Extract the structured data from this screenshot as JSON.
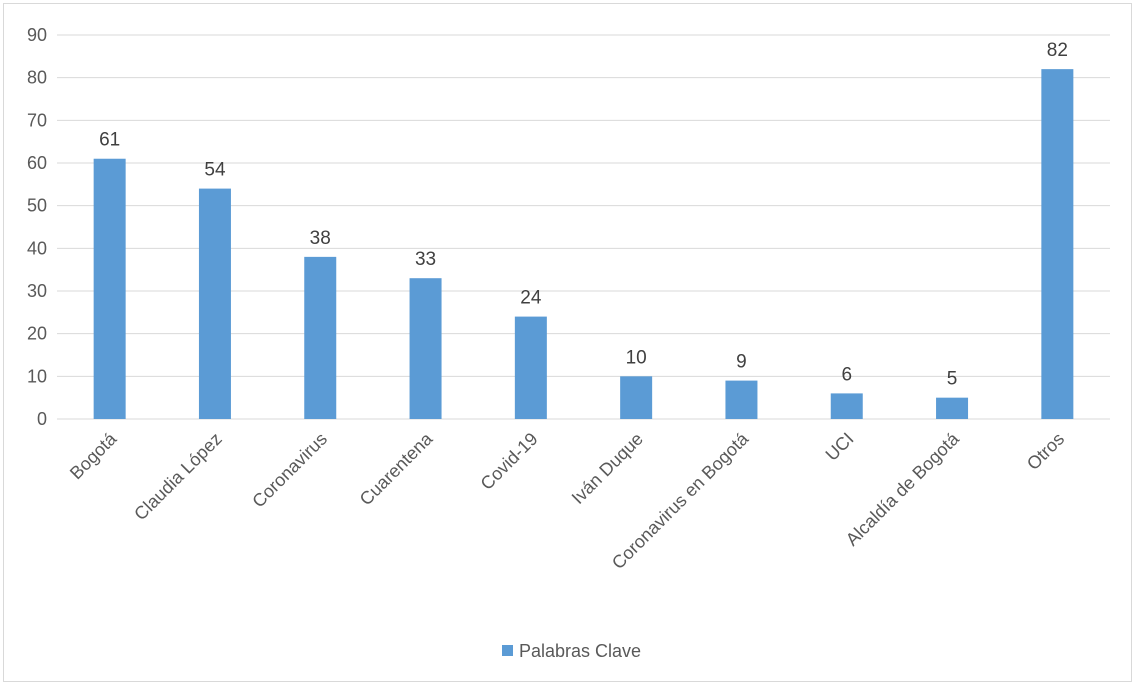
{
  "chart_data": {
    "type": "bar",
    "title": "",
    "xlabel": "",
    "ylabel": "",
    "categories": [
      "Bogotá",
      "Claudia López",
      "Coronavirus",
      "Cuarentena",
      "Covid-19",
      "Iván Duque",
      "Coronavirus en Bogotá",
      "UCI",
      "Alcaldía de Bogotá",
      "Otros"
    ],
    "series": [
      {
        "name": "Palabras Clave",
        "values": [
          61,
          54,
          38,
          33,
          24,
          10,
          9,
          6,
          5,
          82
        ],
        "color": "#5b9bd5"
      }
    ],
    "ylim": [
      0,
      90
    ],
    "yticks": [
      0,
      10,
      20,
      30,
      40,
      50,
      60,
      70,
      80,
      90
    ],
    "grid": true,
    "legend_position": "bottom",
    "data_labels": true
  }
}
